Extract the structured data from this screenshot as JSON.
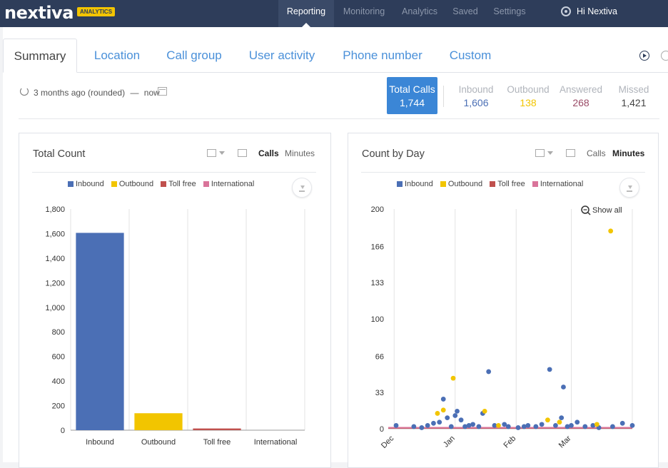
{
  "app": {
    "logo": "nextiva",
    "logo_badge": "ANALYTICS",
    "nav": [
      "Reporting",
      "Monitoring",
      "Analytics",
      "Saved",
      "Settings"
    ],
    "nav_active": "Reporting",
    "user_greeting": "Hi Nextiva"
  },
  "tabs": [
    "Summary",
    "Location",
    "Call group",
    "User activity",
    "Phone number",
    "Custom"
  ],
  "active_tab": "Summary",
  "date_range": {
    "label": "3 months ago (rounded)",
    "dash": "—",
    "end": "now"
  },
  "totals": {
    "total_label": "Total Calls",
    "total_value": "1,744",
    "stats": [
      {
        "label": "Inbound",
        "value": "1,606",
        "color": "#4b6fb5"
      },
      {
        "label": "Outbound",
        "value": "138",
        "color": "#f2c500"
      },
      {
        "label": "Answered",
        "value": "268",
        "color": "#9a4a66"
      },
      {
        "label": "Missed",
        "value": "1,421",
        "color": "#444444"
      }
    ]
  },
  "colors": {
    "inbound": "#4b6fb5",
    "outbound": "#f2c500",
    "toll_free": "#c0504d",
    "international": "#d9749a",
    "accent": "#3b86d6"
  },
  "cards": {
    "total_count": {
      "title": "Total Count",
      "calls_label": "Calls",
      "minutes_label": "Minutes",
      "active": "Calls"
    },
    "count_by_day": {
      "title": "Count by Day",
      "calls_label": "Calls",
      "minutes_label": "Minutes",
      "active": "Minutes",
      "show_all_label": "Show all"
    }
  },
  "legend": [
    {
      "name": "Inbound",
      "color": "#4b6fb5"
    },
    {
      "name": "Outbound",
      "color": "#f2c500"
    },
    {
      "name": "Toll free",
      "color": "#c0504d"
    },
    {
      "name": "International",
      "color": "#d9749a"
    }
  ],
  "chart_data": [
    {
      "type": "bar",
      "title": "Total Count",
      "categories": [
        "Inbound",
        "Outbound",
        "Toll free",
        "International"
      ],
      "values": [
        1606,
        138,
        14,
        0
      ],
      "colors": [
        "#4b6fb5",
        "#f2c500",
        "#c0504d",
        "#d9749a"
      ],
      "ylim": [
        0,
        1800
      ],
      "yticks": [
        0,
        200,
        400,
        600,
        800,
        1000,
        1200,
        1400,
        1600,
        1800
      ],
      "ytick_labels": [
        "0",
        "200",
        "400",
        "600",
        "800",
        "1,000",
        "1,200",
        "1,400",
        "1,600",
        "1,800"
      ],
      "grid": true,
      "legend": "top"
    },
    {
      "type": "scatter",
      "title": "Count by Day",
      "ylim": [
        0,
        200
      ],
      "yticks": [
        0,
        33,
        66,
        100,
        133,
        166,
        200
      ],
      "x_tick_labels": [
        "Dec",
        "Jan",
        "Feb",
        "Mar"
      ],
      "x_tick_days": [
        0,
        31,
        62,
        90
      ],
      "x_range_days": [
        -3,
        121
      ],
      "grid": true,
      "legend": "top",
      "series": [
        {
          "name": "Inbound",
          "color": "#4b6fb5",
          "points": [
            [
              1,
              3
            ],
            [
              10,
              2
            ],
            [
              14,
              1
            ],
            [
              17,
              3
            ],
            [
              20,
              5
            ],
            [
              23,
              6
            ],
            [
              25,
              27
            ],
            [
              27,
              10
            ],
            [
              29,
              2
            ],
            [
              31,
              12
            ],
            [
              32,
              16
            ],
            [
              34,
              8
            ],
            [
              36,
              2
            ],
            [
              38,
              3
            ],
            [
              40,
              4
            ],
            [
              43,
              2
            ],
            [
              45,
              14
            ],
            [
              48,
              52
            ],
            [
              51,
              3
            ],
            [
              56,
              4
            ],
            [
              58,
              2
            ],
            [
              63,
              1
            ],
            [
              66,
              2
            ],
            [
              68,
              3
            ],
            [
              72,
              2
            ],
            [
              75,
              4
            ],
            [
              79,
              54
            ],
            [
              82,
              3
            ],
            [
              85,
              10
            ],
            [
              86,
              38
            ],
            [
              88,
              2
            ],
            [
              90,
              3
            ],
            [
              93,
              6
            ],
            [
              97,
              2
            ],
            [
              101,
              3
            ],
            [
              104,
              1
            ],
            [
              111,
              2
            ],
            [
              116,
              5
            ],
            [
              121,
              3
            ]
          ]
        },
        {
          "name": "Outbound",
          "color": "#f2c500",
          "points": [
            [
              22,
              14
            ],
            [
              25,
              17
            ],
            [
              30,
              46
            ],
            [
              46,
              16
            ],
            [
              53,
              3
            ],
            [
              78,
              8
            ],
            [
              84,
              6
            ],
            [
              103,
              4
            ],
            [
              110,
              180
            ]
          ]
        },
        {
          "name": "Toll free",
          "color": "#c0504d",
          "points": []
        },
        {
          "name": "International",
          "color": "#d9749a",
          "points": []
        }
      ]
    }
  ]
}
